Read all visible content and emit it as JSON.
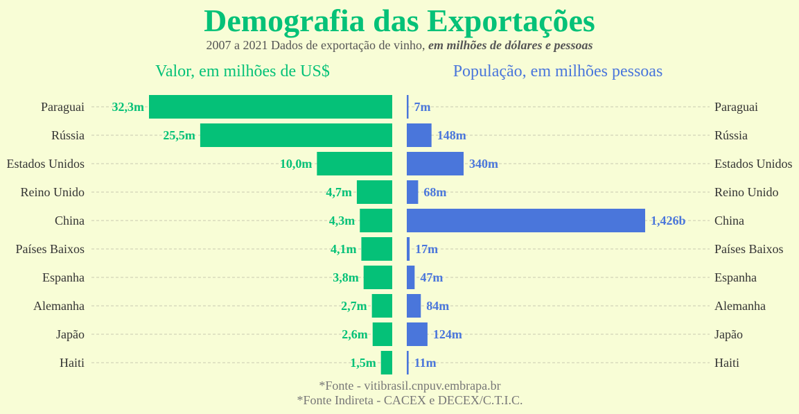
{
  "title": "Demografia das Exportações",
  "subtitle_plain": "2007 a 2021 Dados de exportação de vinho, ",
  "subtitle_em": "em milhões de dólares e pessoas",
  "footer": [
    "*Fonte - vitibrasil.cnpuv.embrapa.br",
    "*Fonte Indireta - CACEX e DECEX/C.T.I.C."
  ],
  "colors": {
    "value": "#05c178",
    "population": "#4a76db",
    "background": "#f8fdd6"
  },
  "chart_data": [
    {
      "type": "bar",
      "orientation": "horizontal",
      "title": "Valor, em milhões de US$",
      "categories": [
        "Paraguai",
        "Rússia",
        "Estados Unidos",
        "Reino Unido",
        "China",
        "Países Baixos",
        "Espanha",
        "Alemanha",
        "Japão",
        "Haiti"
      ],
      "values": [
        32.3,
        25.5,
        10.0,
        4.7,
        4.3,
        4.1,
        3.8,
        2.7,
        2.6,
        1.5
      ],
      "labels": [
        "32,3m",
        "25,5m",
        "10,0m",
        "4,7m",
        "4,3m",
        "4,1m",
        "3,8m",
        "2,7m",
        "2,6m",
        "1,5m"
      ],
      "direction": "right-to-left",
      "grid": true
    },
    {
      "type": "bar",
      "orientation": "horizontal",
      "title": "População, em milhões pessoas",
      "categories": [
        "Paraguai",
        "Rússia",
        "Estados Unidos",
        "Reino Unido",
        "China",
        "Países Baixos",
        "Espanha",
        "Alemanha",
        "Japão",
        "Haiti"
      ],
      "values": [
        7,
        148,
        340,
        68,
        1426,
        17,
        47,
        84,
        124,
        11
      ],
      "labels": [
        "7m",
        "148m",
        "340m",
        "68m",
        "1,426b",
        "17m",
        "47m",
        "84m",
        "124m",
        "11m"
      ],
      "direction": "left-to-right",
      "grid": true
    }
  ]
}
